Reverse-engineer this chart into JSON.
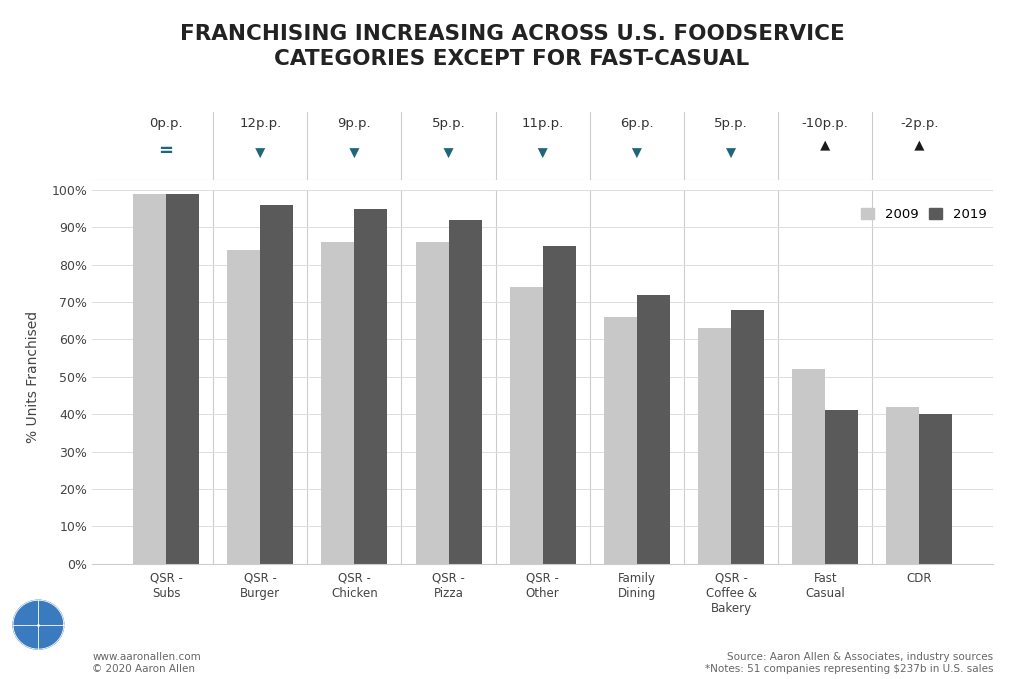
{
  "title": "FRANCHISING INCREASING ACROSS U.S. FOODSERVICE\nCATEGORIES EXCEPT FOR FAST-CASUAL",
  "categories": [
    "QSR -\nSubs",
    "QSR -\nBurger",
    "QSR -\nChicken",
    "QSR -\nPizza",
    "QSR -\nOther",
    "Family\nDining",
    "QSR -\nCoffee &\nBakery",
    "Fast\nCasual",
    "CDR"
  ],
  "values_2009": [
    0.99,
    0.84,
    0.86,
    0.86,
    0.74,
    0.66,
    0.63,
    0.52,
    0.42
  ],
  "values_2019": [
    0.99,
    0.96,
    0.95,
    0.92,
    0.85,
    0.72,
    0.68,
    0.41,
    0.4
  ],
  "changes": [
    "0p.p.",
    "12p.p.",
    "9p.p.",
    "5p.p.",
    "11p.p.",
    "6p.p.",
    "5p.p.",
    "-10p.p.",
    "-2p.p."
  ],
  "change_dirs": [
    0,
    1,
    1,
    1,
    1,
    1,
    1,
    -1,
    -1
  ],
  "color_2009": "#c8c8c8",
  "color_2019": "#5a5a5a",
  "teal_color": "#1e6678",
  "black_color": "#1a1a1a",
  "background_color": "#ffffff",
  "ylabel": "% Units Franchised",
  "footer_left_line1": "www.aaronallen.com",
  "footer_left_line2": "© 2020 Aaron Allen",
  "footer_right_line1": "Source: Aaron Allen & Associates, industry sources",
  "footer_right_line2": "*Notes: 51 companies representing $237b in U.S. sales"
}
